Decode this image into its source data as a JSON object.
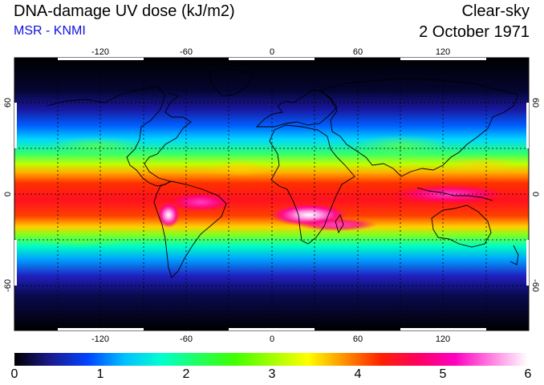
{
  "header": {
    "title": "DNA-damage UV dose (kJ/m2)",
    "source": "MSR - KNMI",
    "sky_condition": "Clear-sky",
    "date": "2 October 1971"
  },
  "map": {
    "projection": "equirectangular",
    "lon_range": [
      -180,
      180
    ],
    "lat_range": [
      -90,
      90
    ],
    "lon_ticks": [
      "-120",
      "-60",
      "0",
      "60",
      "120"
    ],
    "lat_ticks_left": [
      "60",
      "0",
      "-60"
    ],
    "lat_ticks_right": [
      "60",
      "0",
      "-60"
    ]
  },
  "colorbar": {
    "min": 0,
    "max": 6,
    "labels": [
      "0",
      "1",
      "2",
      "3",
      "4",
      "5",
      "6"
    ],
    "colors": [
      "#000000",
      "#1b1b90",
      "#0044ff",
      "#00c0ff",
      "#00ffd0",
      "#20ff60",
      "#40ff00",
      "#a0ff00",
      "#ffff00",
      "#ff9000",
      "#ff2000",
      "#ff0060",
      "#ff00c0",
      "#ff80e0",
      "#ffffff"
    ]
  }
}
